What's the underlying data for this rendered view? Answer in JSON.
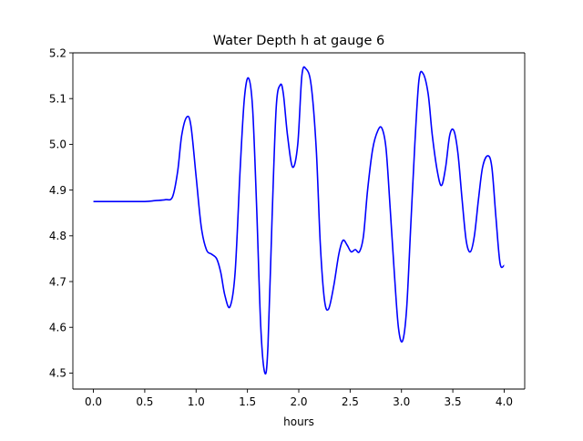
{
  "chart_data": {
    "type": "line",
    "title": "Water Depth h at gauge 6",
    "xlabel": "hours",
    "ylabel": "",
    "xlim": [
      -0.2,
      4.2
    ],
    "ylim": [
      4.465,
      5.2
    ],
    "xticks": [
      0.0,
      0.5,
      1.0,
      1.5,
      2.0,
      2.5,
      3.0,
      3.5,
      4.0
    ],
    "xtick_labels": [
      "0.0",
      "0.5",
      "1.0",
      "1.5",
      "2.0",
      "2.5",
      "3.0",
      "3.5",
      "4.0"
    ],
    "yticks": [
      4.5,
      4.6,
      4.7,
      4.8,
      4.9,
      5.0,
      5.1,
      5.2
    ],
    "ytick_labels": [
      "4.5",
      "4.6",
      "4.7",
      "4.8",
      "4.9",
      "5.0",
      "5.1",
      "5.2"
    ],
    "grid": false,
    "legend": false,
    "series": [
      {
        "color": "#0000ff",
        "x": [
          0.0,
          0.25,
          0.5,
          0.6,
          0.7,
          0.77,
          0.82,
          0.86,
          0.91,
          0.95,
          1.0,
          1.05,
          1.1,
          1.15,
          1.2,
          1.24,
          1.28,
          1.33,
          1.38,
          1.43,
          1.47,
          1.51,
          1.55,
          1.59,
          1.63,
          1.67,
          1.7,
          1.74,
          1.78,
          1.82,
          1.85,
          1.89,
          1.94,
          1.99,
          2.03,
          2.07,
          2.12,
          2.17,
          2.21,
          2.25,
          2.29,
          2.34,
          2.39,
          2.43,
          2.47,
          2.51,
          2.55,
          2.59,
          2.63,
          2.67,
          2.72,
          2.77,
          2.81,
          2.85,
          2.89,
          2.93,
          2.97,
          3.01,
          3.05,
          3.09,
          3.13,
          3.17,
          3.21,
          3.26,
          3.3,
          3.35,
          3.39,
          3.43,
          3.47,
          3.51,
          3.55,
          3.59,
          3.63,
          3.67,
          3.71,
          3.75,
          3.79,
          3.84,
          3.88,
          3.92,
          3.96,
          4.0
        ],
        "y": [
          4.875,
          4.875,
          4.875,
          4.877,
          4.879,
          4.885,
          4.94,
          5.02,
          5.06,
          5.04,
          4.93,
          4.82,
          4.77,
          4.76,
          4.75,
          4.72,
          4.67,
          4.645,
          4.72,
          4.95,
          5.1,
          5.145,
          5.08,
          4.86,
          4.6,
          4.5,
          4.56,
          4.84,
          5.08,
          5.13,
          5.11,
          5.02,
          4.95,
          5.0,
          5.15,
          5.165,
          5.13,
          4.99,
          4.78,
          4.66,
          4.64,
          4.69,
          4.76,
          4.79,
          4.78,
          4.765,
          4.77,
          4.765,
          4.8,
          4.9,
          4.99,
          5.03,
          5.035,
          4.99,
          4.86,
          4.72,
          4.6,
          4.57,
          4.64,
          4.82,
          5.0,
          5.14,
          5.155,
          5.11,
          5.02,
          4.94,
          4.91,
          4.95,
          5.02,
          5.03,
          4.98,
          4.88,
          4.79,
          4.765,
          4.8,
          4.88,
          4.95,
          4.975,
          4.95,
          4.84,
          4.74,
          4.735
        ]
      }
    ]
  }
}
